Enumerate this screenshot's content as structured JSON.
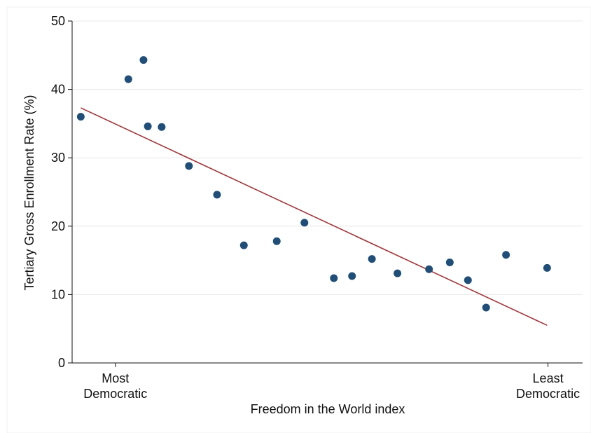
{
  "chart_data": {
    "type": "scatter",
    "title": "",
    "xlabel": "Freedom in the World index",
    "ylabel": "Tertiary Gross Enrollment Rate (%)",
    "xlim": [
      -0.1,
      1.08
    ],
    "ylim": [
      0,
      50
    ],
    "yticks": [
      0,
      10,
      20,
      30,
      40,
      50
    ],
    "xticks": [
      {
        "value": 0,
        "line1": "Most",
        "line2": "Democratic"
      },
      {
        "value": 1,
        "line1": "Least",
        "line2": "Democratic"
      }
    ],
    "grid": true,
    "series": [
      {
        "type": "scatter",
        "color": "#1f4e79",
        "x": [
          -0.08,
          0.03,
          0.065,
          0.075,
          0.107,
          0.17,
          0.235,
          0.297,
          0.373,
          0.437,
          0.505,
          0.547,
          0.593,
          0.652,
          0.725,
          0.773,
          0.815,
          0.857,
          0.903,
          0.998
        ],
        "y": [
          36.0,
          41.5,
          44.3,
          34.6,
          34.5,
          28.8,
          24.6,
          17.2,
          17.8,
          20.5,
          12.4,
          12.7,
          15.2,
          13.1,
          13.7,
          14.7,
          12.1,
          8.1,
          15.8,
          13.9
        ]
      },
      {
        "type": "line",
        "color": "#a3363a",
        "x": [
          -0.08,
          0.998
        ],
        "y": [
          37.3,
          5.5
        ]
      }
    ]
  }
}
